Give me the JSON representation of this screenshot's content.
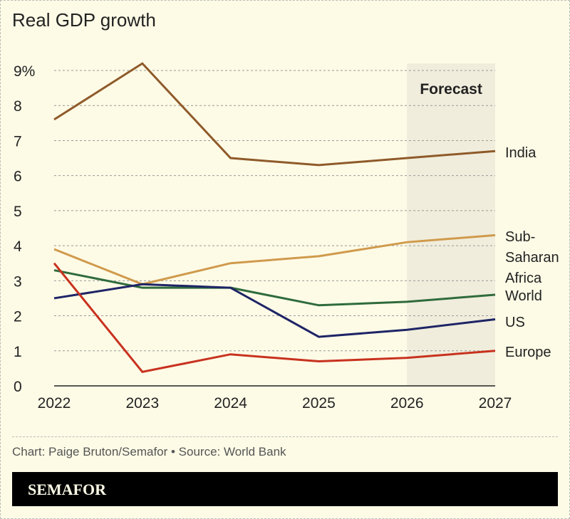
{
  "chart_data": {
    "type": "line",
    "title": "Real GDP growth",
    "x": [
      2022,
      2023,
      2024,
      2025,
      2026,
      2027
    ],
    "ylim": [
      0,
      9
    ],
    "yticks": [
      "0",
      "1",
      "2",
      "3",
      "4",
      "5",
      "6",
      "7",
      "8",
      "9%"
    ],
    "grid": true,
    "forecast": {
      "label": "Forecast",
      "from": 2026,
      "to": 2027,
      "color": "#f0eddc"
    },
    "series": [
      {
        "name": "India",
        "values": [
          7.6,
          9.2,
          6.5,
          6.3,
          6.5,
          6.7
        ],
        "color": "#8f5a2a"
      },
      {
        "name": "Sub-Saharan Africa",
        "label_lines": [
          "Sub-",
          "Saharan",
          "Africa"
        ],
        "values": [
          3.9,
          2.9,
          3.5,
          3.7,
          4.1,
          4.3
        ],
        "color": "#d09a4c"
      },
      {
        "name": "World",
        "values": [
          3.3,
          2.8,
          2.8,
          2.3,
          2.4,
          2.6
        ],
        "color": "#2f6b3c"
      },
      {
        "name": "US",
        "values": [
          2.5,
          2.9,
          2.8,
          1.4,
          1.6,
          1.9
        ],
        "color": "#1e2466"
      },
      {
        "name": "Europe",
        "values": [
          3.5,
          0.4,
          0.9,
          0.7,
          0.8,
          1.0
        ],
        "color": "#c8321f"
      }
    ]
  },
  "credit": "Chart: Paige Bruton/Semafor • Source: World Bank",
  "logo": "SEMAFOR"
}
